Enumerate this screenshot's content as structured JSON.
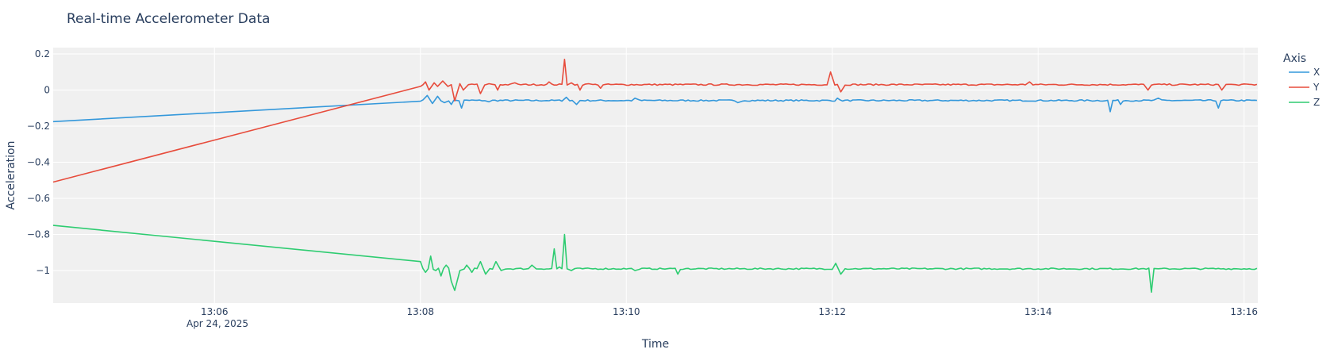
{
  "chart_data": {
    "type": "line",
    "title": "Real-time Accelerometer Data",
    "xlabel": "Time",
    "ylabel": "Acceleration",
    "date_label": "Apr 24, 2025",
    "xlim": [
      "13:04:26",
      "13:16:08"
    ],
    "ylim": [
      -1.18,
      0.235
    ],
    "x_ticks": [
      "13:06",
      "13:08",
      "13:10",
      "13:12",
      "13:14",
      "13:16"
    ],
    "y_ticks": [
      0.2,
      0,
      -0.2,
      -0.4,
      -0.6,
      -0.8,
      -1
    ],
    "y_tick_labels": [
      "0.2",
      "0",
      "−0.2",
      "−0.4",
      "−0.6",
      "−0.8",
      "−1"
    ],
    "grid": true,
    "plot_bgcolor": "#f0f0f0",
    "legend": {
      "title": "Axis",
      "placement": "right-top"
    },
    "series": [
      {
        "name": "X",
        "color": "#3498db",
        "base": -0.058,
        "anchor": [
          "13:04:26",
          -0.175
        ],
        "noise": 0.004,
        "features": [
          [
            "13:08:04",
            -0.03
          ],
          [
            "13:08:07",
            -0.075
          ],
          [
            "13:08:10",
            -0.035
          ],
          [
            "13:08:14",
            -0.07
          ],
          [
            "13:08:18",
            -0.08
          ],
          [
            "13:08:24",
            -0.1
          ],
          [
            "13:08:30",
            -0.055
          ],
          [
            "13:08:40",
            -0.065
          ],
          [
            "13:09:25",
            -0.04
          ],
          [
            "13:09:31",
            -0.08
          ],
          [
            "13:09:55",
            -0.06
          ],
          [
            "13:10:05",
            -0.045
          ],
          [
            "13:11:05",
            -0.07
          ],
          [
            "13:12:03",
            -0.045
          ],
          [
            "13:14:42",
            -0.12
          ],
          [
            "13:14:48",
            -0.08
          ],
          [
            "13:15:10",
            -0.045
          ],
          [
            "13:15:45",
            -0.1
          ]
        ]
      },
      {
        "name": "Y",
        "color": "#e74c3c",
        "base": 0.03,
        "anchor": [
          "13:04:26",
          -0.51
        ],
        "noise": 0.004,
        "features": [
          [
            "13:08:00",
            0.02
          ],
          [
            "13:08:03",
            0.045
          ],
          [
            "13:08:05",
            0.0
          ],
          [
            "13:08:08",
            0.04
          ],
          [
            "13:08:10",
            0.02
          ],
          [
            "13:08:13",
            0.05
          ],
          [
            "13:08:16",
            0.02
          ],
          [
            "13:08:18",
            0.03
          ],
          [
            "13:08:20",
            -0.06
          ],
          [
            "13:08:23",
            0.035
          ],
          [
            "13:08:25",
            0.0
          ],
          [
            "13:08:28",
            0.03
          ],
          [
            "13:08:35",
            -0.02
          ],
          [
            "13:08:40",
            0.035
          ],
          [
            "13:08:45",
            0.0
          ],
          [
            "13:08:55",
            0.04
          ],
          [
            "13:09:15",
            0.045
          ],
          [
            "13:09:24",
            0.17
          ],
          [
            "13:09:28",
            0.04
          ],
          [
            "13:09:33",
            0.0
          ],
          [
            "13:09:38",
            0.035
          ],
          [
            "13:09:45",
            0.01
          ],
          [
            "13:11:59",
            0.1
          ],
          [
            "13:12:05",
            -0.01
          ],
          [
            "13:13:55",
            0.045
          ],
          [
            "13:15:04",
            0.0
          ],
          [
            "13:15:47",
            0.0
          ],
          [
            "13:15:55",
            0.03
          ]
        ]
      },
      {
        "name": "Z",
        "color": "#2ecc71",
        "base": -0.99,
        "anchor": [
          "13:04:26",
          -0.75
        ],
        "noise": 0.004,
        "features": [
          [
            "13:08:00",
            -0.95
          ],
          [
            "13:08:03",
            -1.01
          ],
          [
            "13:08:06",
            -0.92
          ],
          [
            "13:08:09",
            -1.0
          ],
          [
            "13:08:12",
            -1.03
          ],
          [
            "13:08:15",
            -0.97
          ],
          [
            "13:08:18",
            -1.06
          ],
          [
            "13:08:20",
            -1.11
          ],
          [
            "13:08:23",
            -1.0
          ],
          [
            "13:08:27",
            -0.97
          ],
          [
            "13:08:30",
            -1.01
          ],
          [
            "13:08:35",
            -0.95
          ],
          [
            "13:08:38",
            -1.02
          ],
          [
            "13:08:44",
            -0.95
          ],
          [
            "13:08:47",
            -1.0
          ],
          [
            "13:09:05",
            -0.97
          ],
          [
            "13:09:18",
            -0.88
          ],
          [
            "13:09:21",
            -0.98
          ],
          [
            "13:09:24",
            -0.8
          ],
          [
            "13:09:28",
            -1.0
          ],
          [
            "13:10:05",
            -1.0
          ],
          [
            "13:10:30",
            -1.02
          ],
          [
            "13:12:02",
            -0.96
          ],
          [
            "13:12:05",
            -1.02
          ],
          [
            "13:15:06",
            -1.12
          ],
          [
            "13:15:10",
            -0.99
          ]
        ]
      }
    ]
  }
}
